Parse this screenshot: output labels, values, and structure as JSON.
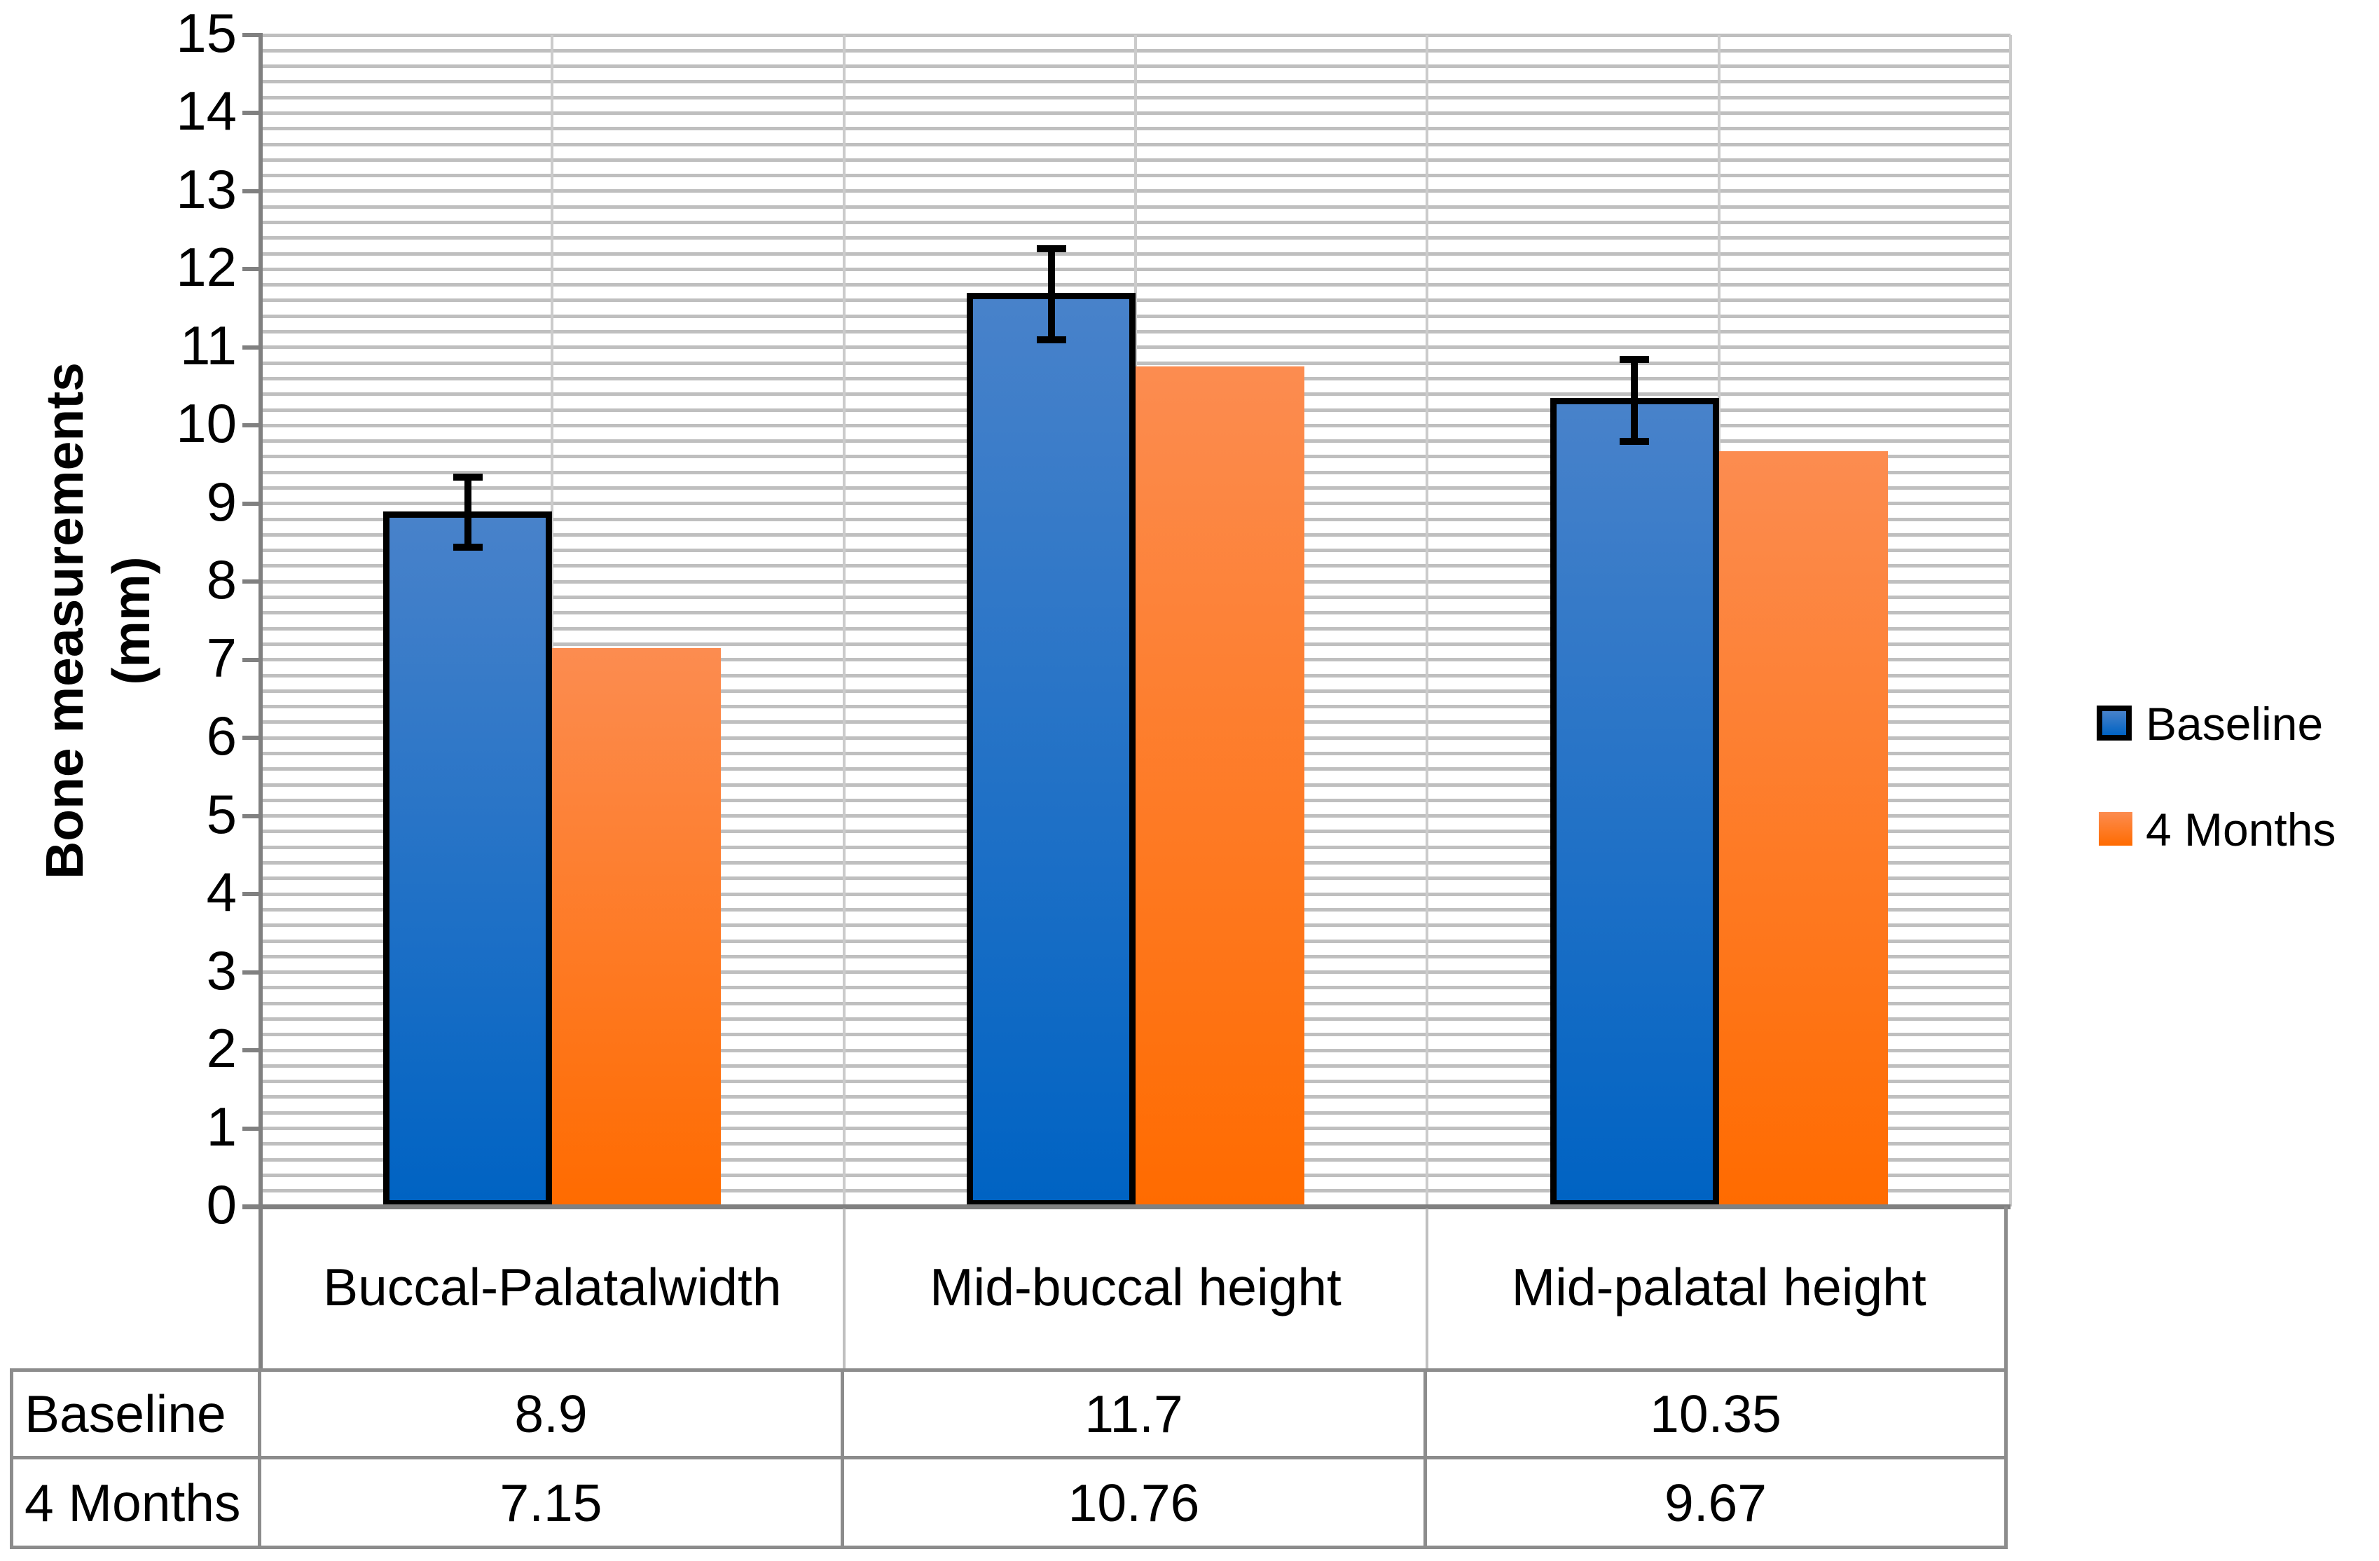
{
  "chart_data": {
    "type": "bar",
    "title": "",
    "xlabel": "",
    "ylabel": "Bone measurements (mm)",
    "ylabel_line1": "Bone measurements",
    "ylabel_line2": "(mm)",
    "ylim": [
      0,
      15
    ],
    "y_major_unit": 1,
    "y_minor_unit": 0.2,
    "y_ticks": [
      0,
      1,
      2,
      3,
      4,
      5,
      6,
      7,
      8,
      9,
      10,
      11,
      12,
      13,
      14,
      15
    ],
    "grid": "horizontal minor gridlines every 0.2; vertical gridlines at half-category intervals",
    "legend_position": "right",
    "categories": [
      "Buccal-Palatal width",
      "Mid-buccal height",
      "Mid-palatal height"
    ],
    "category_lines": [
      [
        "Buccal-Palatal",
        "width"
      ],
      [
        "Mid-buccal height"
      ],
      [
        "Mid-palatal height"
      ]
    ],
    "series": [
      {
        "name": "Baseline",
        "values": [
          8.9,
          11.7,
          10.35
        ],
        "error_bars": [
          {
            "low": 8.44,
            "high": 9.34
          },
          {
            "low": 11.1,
            "high": 12.26
          },
          {
            "low": 9.8,
            "high": 10.85
          }
        ]
      },
      {
        "name": "4 Months",
        "values": [
          7.15,
          10.76,
          9.67
        ],
        "error_bars": null
      }
    ]
  },
  "legend": {
    "items": [
      {
        "label": "Baseline",
        "swatch": "blue-gradient-black-border"
      },
      {
        "label": "4 Months",
        "swatch": "orange-gradient"
      }
    ]
  },
  "table": {
    "row_headers": [
      "Baseline",
      "4 Months"
    ],
    "rows": [
      [
        "8.9",
        "11.7",
        "10.35"
      ],
      [
        "7.15",
        "10.76",
        "9.67"
      ]
    ]
  },
  "colors": {
    "blue_top": "#4882CA",
    "blue_bottom": "#0063C3",
    "blue_outline": "#000000",
    "orange_top": "#FC8C50",
    "orange_bottom": "#FF6B00",
    "gridline_h": "#BFBFBF",
    "gridline_v": "#CBCBCB",
    "axis": "#808080",
    "table_border": "#8C8C8C",
    "error_bar": "#000000",
    "text": "#000000",
    "background": "#FFFFFF"
  }
}
